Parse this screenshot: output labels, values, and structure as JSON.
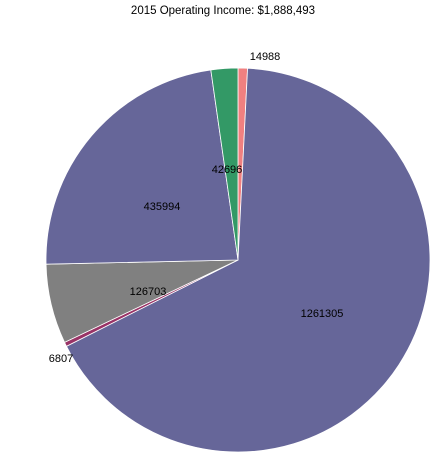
{
  "chart_data": {
    "type": "pie",
    "title": "2015 Operating Income: $1,888,493",
    "slices": [
      {
        "label": "14988",
        "value": 14988,
        "color": "#f08080"
      },
      {
        "label": "1261305",
        "value": 1261305,
        "color": "#666699"
      },
      {
        "label": "6807",
        "value": 6807,
        "color": "#993366"
      },
      {
        "label": "126703",
        "value": 126703,
        "color": "#808080"
      },
      {
        "label": "435994",
        "value": 435994,
        "color": "#666699"
      },
      {
        "label": "42696",
        "value": 42696,
        "color": "#339966"
      }
    ],
    "legend": false
  }
}
